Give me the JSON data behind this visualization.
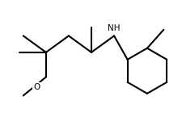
{
  "bg_color": "#ffffff",
  "line_color": "#000000",
  "line_width": 1.5,
  "font_size": 7.5,
  "nh_label": "NH",
  "o_label": "O",
  "fig_width": 2.26,
  "fig_height": 1.45,
  "dpi": 100
}
